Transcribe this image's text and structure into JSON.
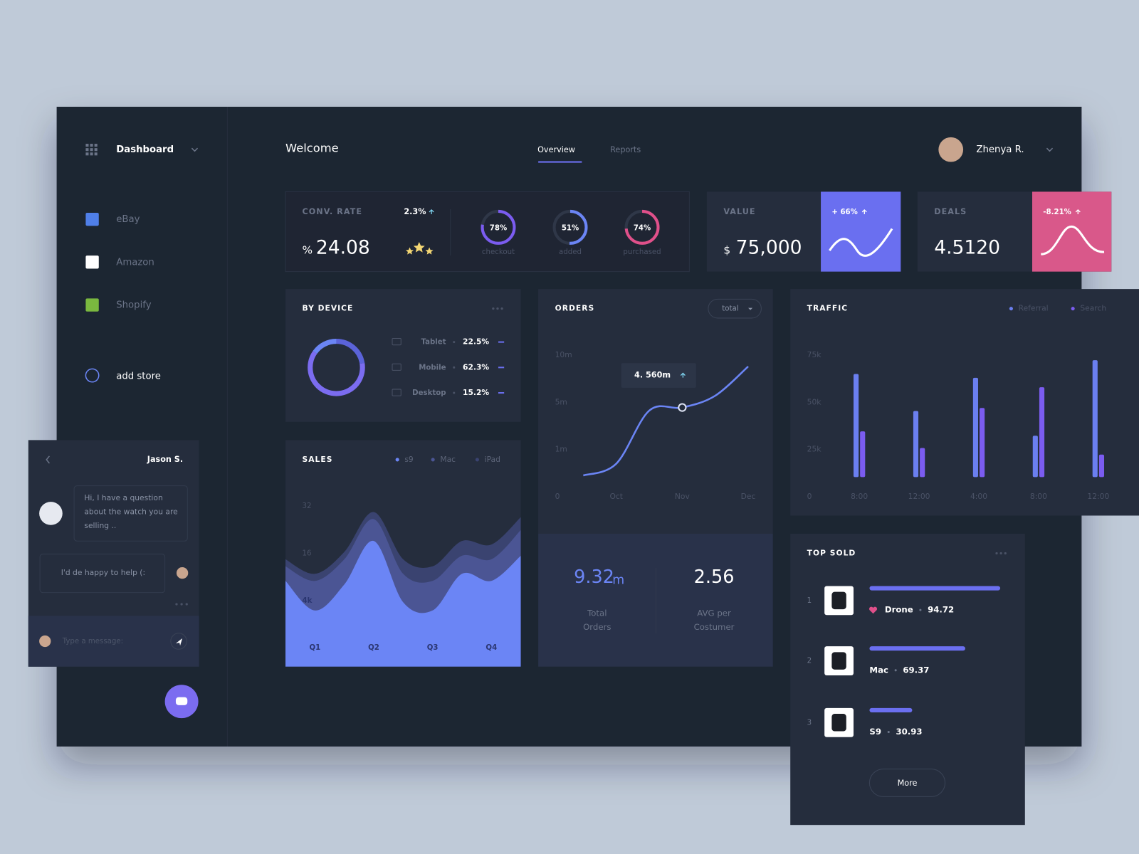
{
  "sidebar": {
    "menu": "Dashboard",
    "stores": [
      "eBay",
      "Amazon",
      "Shopify"
    ],
    "add_store": "add store"
  },
  "header": {
    "title": "Welcome",
    "tabs": [
      "Overview",
      "Reports"
    ],
    "user": "Zhenya R."
  },
  "conv_rate": {
    "label": "CONV. RATE",
    "change": "2.3%",
    "unit": "%",
    "value": "24.08"
  },
  "value_card": {
    "label": "VALUE",
    "unit": "$",
    "value": "75,000",
    "change": "+ 66%"
  },
  "deals_card": {
    "label": "DEALS",
    "value": "4.5120",
    "change": "-8.21%"
  },
  "orders_summary": {
    "total": "9.32",
    "total_unit": "m",
    "total_label": [
      "Total",
      "Orders"
    ],
    "avg": "2.56",
    "avg_label": [
      "AVG per",
      "Costumer"
    ]
  },
  "top_sold": {
    "title": "TOP SOLD",
    "xlim": [
      0,
      100
    ],
    "color": "#6b6ff0",
    "items": [
      {
        "rank": "1",
        "name": "Drone",
        "value": 94.72
      },
      {
        "rank": "2",
        "name": "Mac",
        "value": 69.37
      },
      {
        "rank": "3",
        "name": "S9",
        "value": 30.93
      }
    ],
    "button": "More"
  },
  "chat": {
    "name": "Jason S.",
    "messages": [
      "Hi, I have a question about the watch you are selling ..",
      "I'd de happy to help (:"
    ],
    "placeholder": "Type a message:"
  },
  "chart_data": [
    {
      "type": "ring",
      "categories": [
        "checkout",
        "added",
        "purchased"
      ],
      "values": [
        78,
        51,
        74
      ],
      "value_labels": [
        "78%",
        "51%",
        "74%"
      ],
      "colors": [
        "#7b5cf0",
        "#6b85f5",
        "#e0508a"
      ]
    },
    {
      "type": "donut",
      "title": "BY DEVICE",
      "categories": [
        "Tablet",
        "Mobile",
        "Desktop"
      ],
      "values": [
        22.5,
        62.3,
        15.2
      ],
      "value_labels": [
        "22.5%",
        "62.3%",
        "15.2%"
      ],
      "colors": [
        "#5b63d9",
        "#7b6cf0",
        "#6b85f5"
      ]
    },
    {
      "type": "area",
      "title": "SALES",
      "categories": [
        null,
        "Q1",
        null,
        "Q2",
        null,
        "Q3",
        null,
        "Q4",
        null
      ],
      "ylim": [
        0,
        32
      ],
      "yticks": [
        {
          "value": 4,
          "label": "4k"
        },
        16,
        32
      ],
      "series": [
        {
          "name": "s9",
          "color": "#6b85f5",
          "values": [
            9.0,
            3.4,
            8.1,
            20.2,
            3.9,
            3.4,
            10.8,
            9.0,
            15.4
          ]
        },
        {
          "name": "Mac",
          "color": "#4b5594",
          "values": [
            12.7,
            9.0,
            14.5,
            27.6,
            10.8,
            9.0,
            15.4,
            14.5,
            23.9
          ]
        },
        {
          "name": "iPad",
          "color": "#3a4370",
          "values": [
            14.5,
            10.8,
            16.5,
            30.0,
            14.5,
            12.7,
            20.2,
            19.0,
            28.3
          ]
        }
      ]
    },
    {
      "type": "line",
      "title": "ORDERS",
      "dropdown": "total",
      "categories": [
        null,
        "Oct",
        null,
        "Nov",
        null,
        "Dec"
      ],
      "ylim": [
        0,
        10
      ],
      "yticks": [
        0,
        {
          "value": 1,
          "label": "1m"
        },
        {
          "value": 5,
          "label": "5m"
        },
        {
          "value": 10,
          "label": "10m"
        }
      ],
      "values": [
        0.45,
        0.7,
        4.3,
        4.56,
        5.7,
        8.8
      ],
      "color": "#6b85f5",
      "annotation": {
        "label": "4. 560m",
        "value": 4.56
      }
    },
    {
      "type": "bar",
      "title": "TRAFFIC",
      "categories": [
        "8:00",
        "12:00",
        "4:00",
        "8:00",
        "12:00"
      ],
      "ylim": [
        0,
        75
      ],
      "yticks": [
        0,
        {
          "value": 25,
          "label": "25k"
        },
        {
          "value": 50,
          "label": "50k"
        },
        {
          "value": 75,
          "label": "75k"
        }
      ],
      "series": [
        {
          "name": "Referral",
          "color": "#6b7ff0",
          "values": [
            65,
            45.4,
            63,
            32.3,
            72.3
          ]
        },
        {
          "name": "Search",
          "color": "#7b5cf0",
          "values": [
            34.6,
            25.8,
            47,
            58,
            22.3
          ]
        }
      ]
    }
  ]
}
